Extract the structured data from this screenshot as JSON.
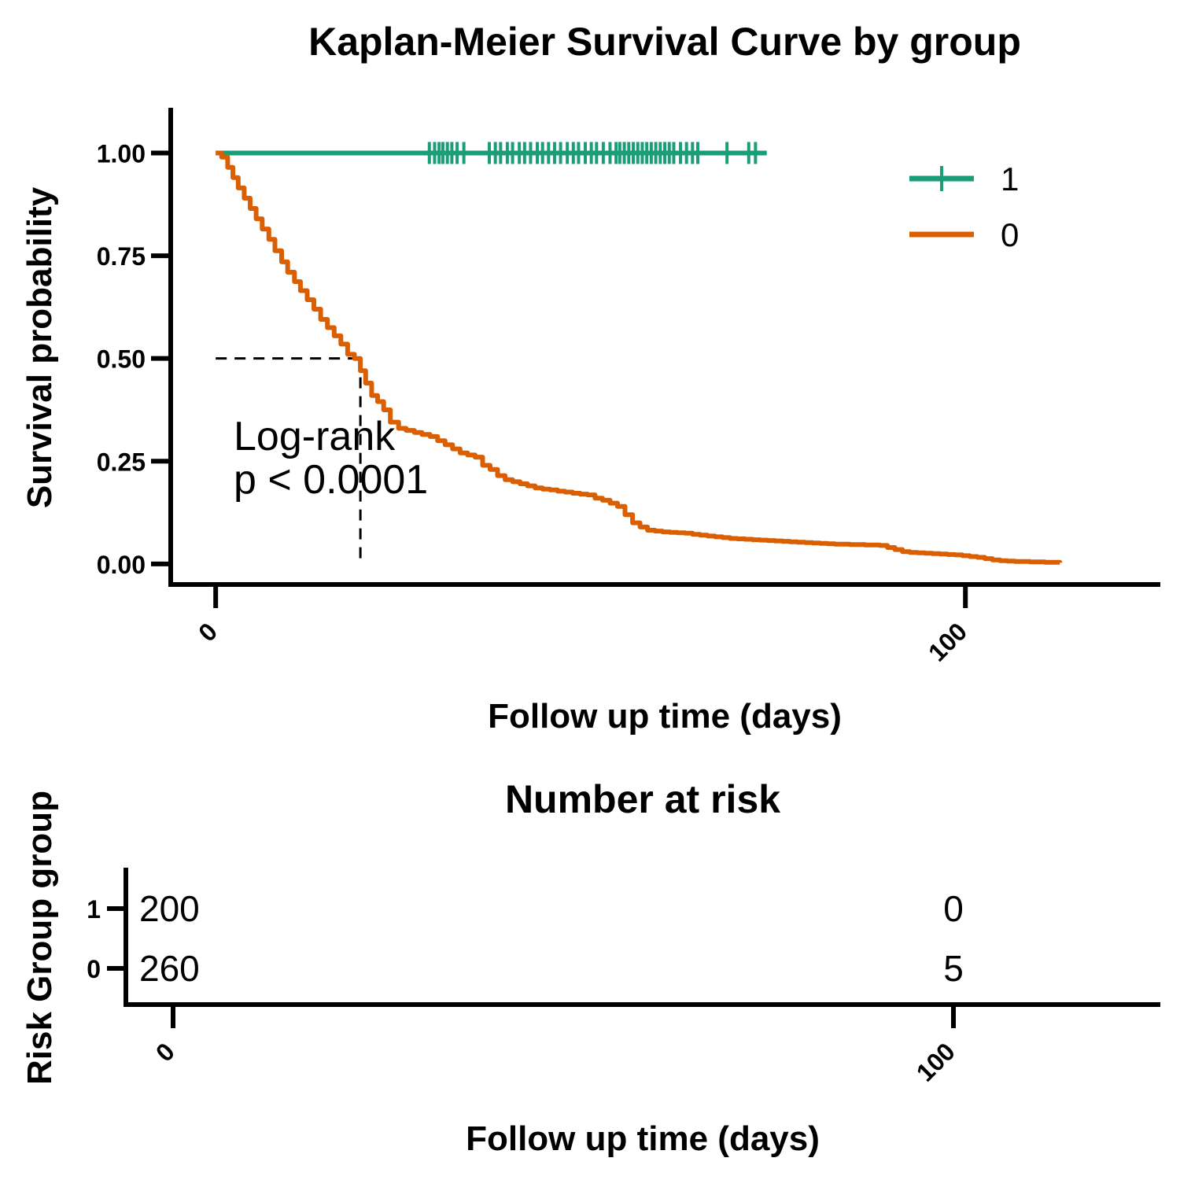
{
  "chart_data": [
    {
      "type": "line",
      "title": "Kaplan-Meier Survival Curve by group",
      "xlabel": "Follow up time (days)",
      "ylabel": "Survival probability",
      "xlim": [
        -6,
        126
      ],
      "ylim": [
        -0.05,
        1.11
      ],
      "xticks": [
        "0",
        "100"
      ],
      "yticks": [
        "0.00",
        "0.25",
        "0.50",
        "0.75",
        "1.00"
      ],
      "legend_position": "top-right",
      "annotation": [
        "Log-rank",
        "p < 0.0001"
      ],
      "median_survival": {
        "x": 19.3,
        "y": 0.5
      },
      "series": [
        {
          "name": "1",
          "color": "#1b9e77",
          "x": [
            0,
            73.5
          ],
          "y": [
            1.0,
            1.0
          ],
          "censor_times": [
            28.5,
            29.2,
            29.8,
            30.3,
            30.9,
            31.5,
            32.2,
            33.1,
            36.5,
            37.3,
            38.0,
            38.9,
            39.6,
            40.5,
            41.2,
            42.0,
            42.9,
            43.6,
            44.4,
            45.2,
            46.0,
            46.9,
            47.7,
            48.4,
            49.3,
            50.1,
            50.8,
            51.7,
            52.6,
            53.4,
            53.9,
            54.5,
            55.1,
            55.7,
            56.3,
            56.9,
            57.5,
            58.1,
            58.7,
            59.3,
            59.9,
            60.5,
            61.1,
            62.0,
            62.8,
            63.6,
            64.3,
            68.2,
            71.1,
            72.0
          ]
        },
        {
          "name": "0",
          "color": "#d95f02",
          "x": [
            0,
            0.8,
            1.6,
            2.3,
            3.0,
            3.8,
            4.6,
            5.4,
            6.2,
            7.1,
            7.9,
            8.8,
            9.6,
            10.5,
            11.3,
            12.2,
            13.1,
            14.0,
            14.9,
            15.8,
            16.7,
            17.6,
            18.5,
            19.3,
            20.0,
            20.8,
            21.6,
            22.4,
            23.3,
            24.4,
            25.4,
            26.5,
            27.5,
            28.6,
            29.6,
            30.6,
            31.6,
            32.6,
            33.6,
            34.6,
            35.6,
            36.6,
            37.6,
            38.6,
            39.6,
            40.6,
            41.6,
            42.6,
            43.6,
            44.6,
            45.6,
            46.6,
            47.6,
            48.6,
            49.6,
            50.6,
            51.6,
            52.6,
            53.6,
            54.6,
            55.6,
            56.6,
            57.6,
            58.6,
            59.6,
            60.6,
            61.6,
            62.6,
            63.6,
            64.6,
            65.6,
            66.6,
            67.6,
            68.6,
            69.6,
            70.6,
            71.6,
            72.6,
            73.6,
            74.6,
            75.6,
            76.6,
            77.6,
            78.6,
            79.6,
            80.6,
            81.6,
            82.6,
            83.6,
            84.6,
            85.6,
            86.6,
            87.6,
            88.6,
            89.6,
            90.6,
            91.6,
            92.6,
            93.6,
            94.6,
            95.6,
            96.6,
            97.6,
            98.6,
            99.6,
            100.6,
            101.6,
            102.6,
            103.6,
            104.6,
            105.6,
            106.6,
            107.6,
            108.6,
            109.6,
            110.6,
            111.6,
            112.6
          ],
          "y": [
            1.0,
            0.99,
            0.965,
            0.94,
            0.915,
            0.89,
            0.865,
            0.84,
            0.815,
            0.79,
            0.762,
            0.735,
            0.71,
            0.687,
            0.665,
            0.643,
            0.62,
            0.595,
            0.575,
            0.555,
            0.535,
            0.51,
            0.5,
            0.47,
            0.44,
            0.41,
            0.395,
            0.375,
            0.345,
            0.33,
            0.325,
            0.32,
            0.315,
            0.31,
            0.3,
            0.29,
            0.28,
            0.27,
            0.265,
            0.26,
            0.24,
            0.23,
            0.215,
            0.205,
            0.2,
            0.195,
            0.19,
            0.185,
            0.182,
            0.18,
            0.177,
            0.175,
            0.172,
            0.17,
            0.168,
            0.16,
            0.155,
            0.148,
            0.14,
            0.12,
            0.1,
            0.09,
            0.082,
            0.08,
            0.078,
            0.077,
            0.076,
            0.075,
            0.072,
            0.07,
            0.068,
            0.066,
            0.064,
            0.062,
            0.061,
            0.06,
            0.059,
            0.058,
            0.057,
            0.056,
            0.055,
            0.054,
            0.053,
            0.052,
            0.051,
            0.05,
            0.049,
            0.048,
            0.048,
            0.047,
            0.047,
            0.046,
            0.046,
            0.045,
            0.04,
            0.035,
            0.03,
            0.028,
            0.027,
            0.026,
            0.025,
            0.024,
            0.023,
            0.022,
            0.02,
            0.018,
            0.016,
            0.013,
            0.01,
            0.008,
            0.007,
            0.006,
            0.006,
            0.005,
            0.005,
            0.004,
            0.004,
            0.003
          ]
        }
      ]
    },
    {
      "type": "table",
      "title": "Number at risk",
      "xlabel": "Follow up time (days)",
      "ylabel": "Risk Group group",
      "xlim": [
        0,
        126
      ],
      "xticks": [
        "0",
        "100"
      ],
      "groups": [
        "1",
        "0"
      ],
      "times": [
        0,
        100
      ],
      "values": [
        [
          200,
          0
        ],
        [
          260,
          5
        ]
      ]
    }
  ]
}
